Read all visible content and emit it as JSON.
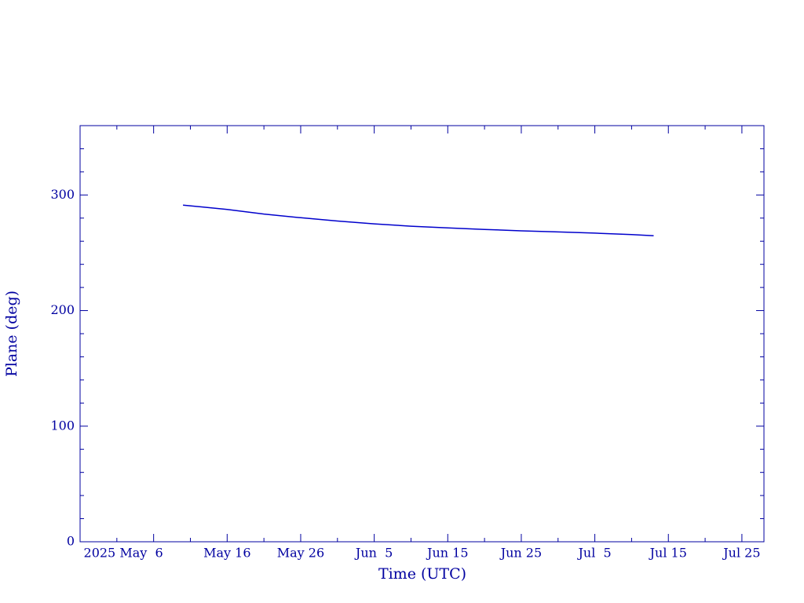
{
  "chart_data": {
    "type": "line",
    "x_label": "Time (UTC)",
    "y_label": "Plane (deg)",
    "x": [
      "2025-05-10",
      "2025-05-16",
      "2025-05-21",
      "2025-05-26",
      "2025-05-31",
      "2025-06-05",
      "2025-06-10",
      "2025-06-15",
      "2025-06-20",
      "2025-06-25",
      "2025-06-30",
      "2025-07-05",
      "2025-07-10",
      "2025-07-13"
    ],
    "series": [
      {
        "color": "#0000cc",
        "values": [
          291.2,
          287.5,
          283.5,
          280.3,
          277.5,
          275,
          273,
          271.5,
          270.2,
          269,
          268,
          267,
          265.8,
          264.8
        ]
      }
    ],
    "xlim": [
      "2025-04-26",
      "2025-07-28"
    ],
    "xticks": [
      {
        "value": "2025-05-06",
        "label": "2025 May  6"
      },
      {
        "value": "2025-05-16",
        "label": "May 16"
      },
      {
        "value": "2025-05-26",
        "label": "May 26"
      },
      {
        "value": "2025-06-05",
        "label": "Jun  5"
      },
      {
        "value": "2025-06-15",
        "label": "Jun 15"
      },
      {
        "value": "2025-06-25",
        "label": "Jun 25"
      },
      {
        "value": "2025-07-05",
        "label": "Jul  5"
      },
      {
        "value": "2025-07-15",
        "label": "Jul 15"
      },
      {
        "value": "2025-07-25",
        "label": "Jul 25"
      }
    ],
    "xminorticks": [
      "2025-05-01",
      "2025-05-11",
      "2025-05-21",
      "2025-05-31",
      "2025-06-10",
      "2025-06-20",
      "2025-06-30",
      "2025-07-10",
      "2025-07-20"
    ],
    "ylim": [
      0,
      360
    ],
    "yticks": [
      0,
      100,
      200,
      300
    ],
    "yminorticks": [
      20,
      40,
      60,
      80,
      120,
      140,
      160,
      180,
      220,
      240,
      260,
      280,
      320,
      340
    ],
    "axis_color": "#0000a0"
  }
}
